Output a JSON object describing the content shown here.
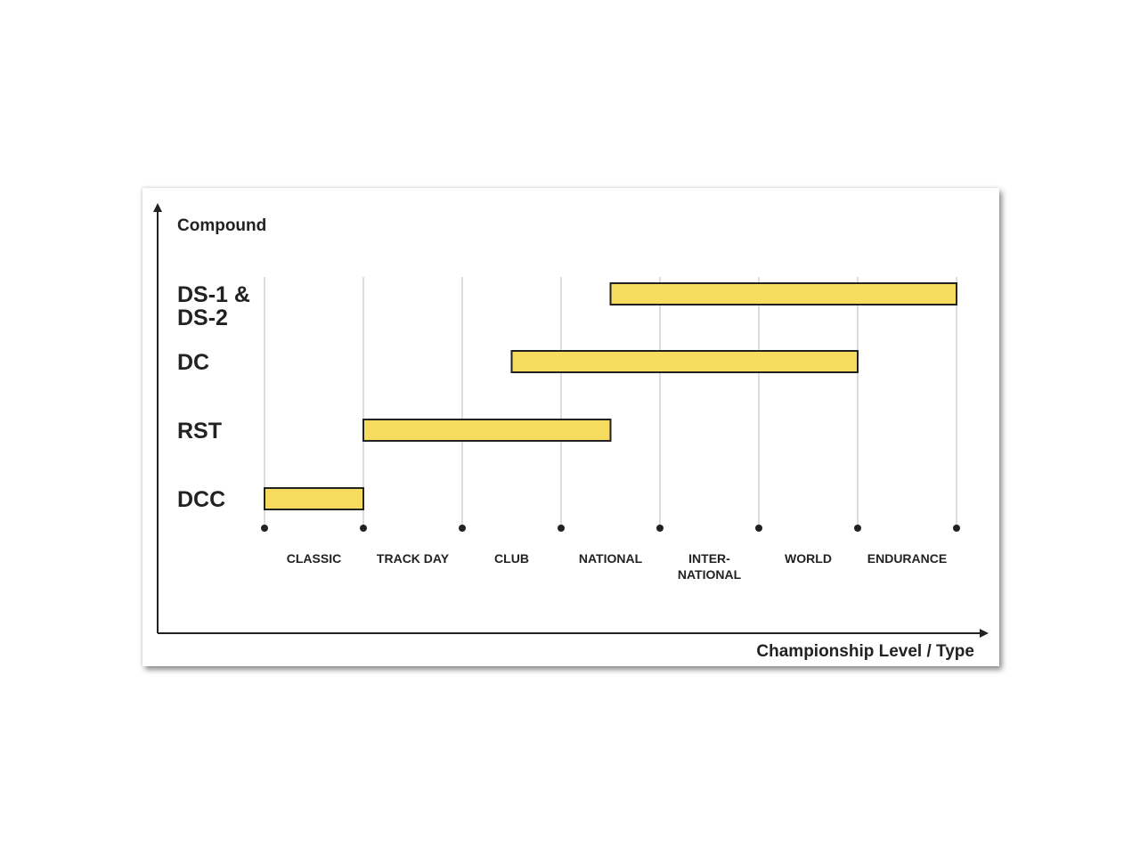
{
  "chart_data": {
    "type": "bar",
    "orientation": "horizontal-range",
    "xlabel": "Championship Level / Type",
    "ylabel": "Compound",
    "levels": [
      [
        "CLASSIC"
      ],
      [
        "TRACK DAY"
      ],
      [
        "CLUB"
      ],
      [
        "NATIONAL"
      ],
      [
        "INTER-",
        "NATIONAL"
      ],
      [
        "WORLD"
      ],
      [
        "ENDURANCE"
      ]
    ],
    "compounds": [
      {
        "label": [
          "DS-1 &",
          "DS-2"
        ],
        "start": 3.5,
        "end": 7
      },
      {
        "label": [
          "DC"
        ],
        "start": 2.5,
        "end": 6
      },
      {
        "label": [
          "RST"
        ],
        "start": 1,
        "end": 3.5
      },
      {
        "label": [
          "DCC"
        ],
        "start": 0,
        "end": 1
      }
    ],
    "grid": true,
    "colors": {
      "bar": "#f5dc5e",
      "bar_stroke": "#222222",
      "grid": "#bbbbbb",
      "axis": "#222222"
    }
  }
}
